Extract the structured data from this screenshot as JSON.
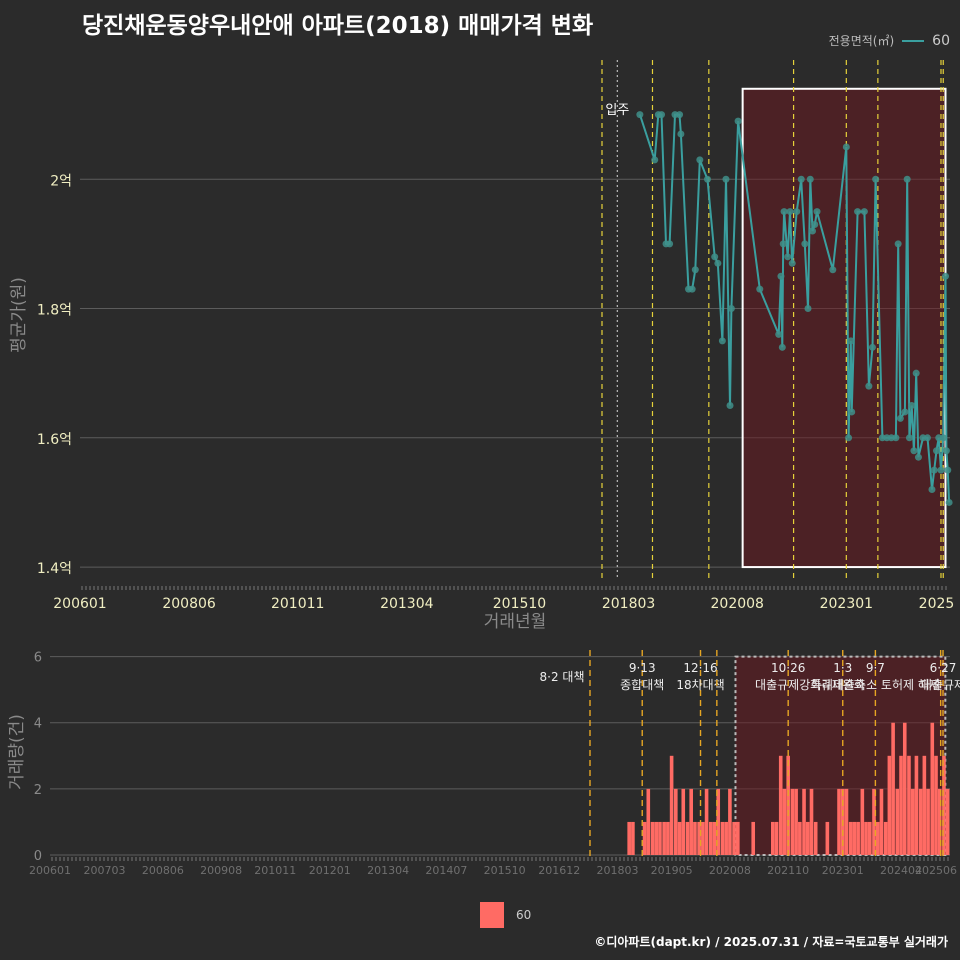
{
  "title": "당진채운동양우내안애 아파트(2018) 매매가격 변화",
  "legend_top": {
    "title": "전용면적(㎡)",
    "item": "60",
    "color": "#3a9f9f"
  },
  "legend_bottom": {
    "item": "60",
    "color": "#ff6b64"
  },
  "footer": "©디아파트(dapt.kr) / 2025.07.31 / 자료=국토교통부 실거래가",
  "chart_data": [
    {
      "type": "line",
      "title": "당진채운동양우내안애 아파트(2018) 매매가격 변화",
      "xlabel": "거래년월",
      "ylabel": "평균가(원)",
      "ylim": [
        1.38,
        2.2
      ],
      "xlim": [
        2006.0,
        2025.3
      ],
      "x_ticks": [
        {
          "v": 2006.0,
          "l": "200601"
        },
        {
          "v": 2008.42,
          "l": "200806"
        },
        {
          "v": 2010.83,
          "l": "201011"
        },
        {
          "v": 2013.25,
          "l": "201304"
        },
        {
          "v": 2015.75,
          "l": "201510"
        },
        {
          "v": 2018.17,
          "l": "201803"
        },
        {
          "v": 2020.58,
          "l": "202008"
        },
        {
          "v": 2023.0,
          "l": "202301"
        },
        {
          "v": 2025.0,
          "l": "2025"
        }
      ],
      "y_ticks": [
        {
          "v": 1.4,
          "l": "1.4억"
        },
        {
          "v": 1.6,
          "l": "1.6억"
        },
        {
          "v": 1.8,
          "l": "1.8억"
        },
        {
          "v": 2.0,
          "l": "2억"
        }
      ],
      "move_in": {
        "x": 2017.92,
        "label": "입주"
      },
      "policy_lines": [
        2017.58,
        2018.7,
        2019.95,
        2021.83,
        2023.0,
        2023.7,
        2025.1,
        2025.15
      ],
      "highlight": {
        "x0": 2020.7,
        "x1": 2025.2,
        "y0": 1.4,
        "y1": 2.14
      },
      "series": [
        {
          "name": "60",
          "points": [
            [
              2018.42,
              2.1
            ],
            [
              2018.75,
              2.03
            ],
            [
              2018.83,
              2.1
            ],
            [
              2018.9,
              2.1
            ],
            [
              2019.0,
              1.9
            ],
            [
              2019.08,
              1.9
            ],
            [
              2019.2,
              2.1
            ],
            [
              2019.3,
              2.1
            ],
            [
              2019.33,
              2.07
            ],
            [
              2019.5,
              1.83
            ],
            [
              2019.58,
              1.83
            ],
            [
              2019.65,
              1.86
            ],
            [
              2019.75,
              2.03
            ],
            [
              2019.92,
              2.0
            ],
            [
              2020.08,
              1.88
            ],
            [
              2020.15,
              1.87
            ],
            [
              2020.25,
              1.75
            ],
            [
              2020.33,
              2.0
            ],
            [
              2020.42,
              1.65
            ],
            [
              2020.45,
              1.8
            ],
            [
              2020.6,
              2.09
            ],
            [
              2021.08,
              1.83
            ],
            [
              2021.5,
              1.76
            ],
            [
              2021.55,
              1.85
            ],
            [
              2021.58,
              1.74
            ],
            [
              2021.6,
              1.9
            ],
            [
              2021.62,
              1.95
            ],
            [
              2021.7,
              1.88
            ],
            [
              2021.75,
              1.95
            ],
            [
              2021.8,
              1.87
            ],
            [
              2021.9,
              1.95
            ],
            [
              2022.0,
              2.0
            ],
            [
              2022.08,
              1.9
            ],
            [
              2022.15,
              1.8
            ],
            [
              2022.2,
              2.0
            ],
            [
              2022.25,
              1.92
            ],
            [
              2022.3,
              1.93
            ],
            [
              2022.35,
              1.95
            ],
            [
              2022.7,
              1.86
            ],
            [
              2023.0,
              2.05
            ],
            [
              2023.05,
              1.6
            ],
            [
              2023.1,
              1.75
            ],
            [
              2023.12,
              1.64
            ],
            [
              2023.25,
              1.95
            ],
            [
              2023.4,
              1.95
            ],
            [
              2023.5,
              1.68
            ],
            [
              2023.58,
              1.74
            ],
            [
              2023.65,
              2.0
            ],
            [
              2023.8,
              1.6
            ],
            [
              2023.9,
              1.6
            ],
            [
              2024.0,
              1.6
            ],
            [
              2024.1,
              1.6
            ],
            [
              2024.15,
              1.9
            ],
            [
              2024.2,
              1.63
            ],
            [
              2024.3,
              1.64
            ],
            [
              2024.35,
              2.0
            ],
            [
              2024.4,
              1.6
            ],
            [
              2024.45,
              1.65
            ],
            [
              2024.5,
              1.58
            ],
            [
              2024.55,
              1.7
            ],
            [
              2024.6,
              1.57
            ],
            [
              2024.7,
              1.6
            ],
            [
              2024.8,
              1.6
            ],
            [
              2024.9,
              1.52
            ],
            [
              2024.95,
              1.55
            ],
            [
              2025.0,
              1.58
            ],
            [
              2025.05,
              1.6
            ],
            [
              2025.1,
              1.55
            ],
            [
              2025.15,
              1.6
            ],
            [
              2025.2,
              1.85
            ],
            [
              2025.22,
              1.58
            ],
            [
              2025.25,
              1.55
            ],
            [
              2025.28,
              1.5
            ]
          ]
        }
      ]
    },
    {
      "type": "bar",
      "xlabel": "",
      "ylabel": "거래량(건)",
      "ylim": [
        0,
        6.2
      ],
      "xlim": [
        2006.0,
        2025.3
      ],
      "x_ticks": [
        {
          "v": 2006.0,
          "l": "200601"
        },
        {
          "v": 2007.17,
          "l": "200703"
        },
        {
          "v": 2008.42,
          "l": "200806"
        },
        {
          "v": 2009.67,
          "l": "200908"
        },
        {
          "v": 2010.83,
          "l": "201011"
        },
        {
          "v": 2012.0,
          "l": "201201"
        },
        {
          "v": 2013.25,
          "l": "201304"
        },
        {
          "v": 2014.5,
          "l": "201407"
        },
        {
          "v": 2015.75,
          "l": "201510"
        },
        {
          "v": 2016.92,
          "l": "201612"
        },
        {
          "v": 2018.17,
          "l": "201803"
        },
        {
          "v": 2019.33,
          "l": "201905"
        },
        {
          "v": 2020.58,
          "l": "202008"
        },
        {
          "v": 2021.83,
          "l": "202110"
        },
        {
          "v": 2023.0,
          "l": "202301"
        },
        {
          "v": 2024.25,
          "l": "202404"
        },
        {
          "v": 2025.0,
          "l": "202506"
        }
      ],
      "y_ticks": [
        {
          "v": 0,
          "l": "0"
        },
        {
          "v": 2,
          "l": "2"
        },
        {
          "v": 4,
          "l": "4"
        },
        {
          "v": 6,
          "l": "6"
        }
      ],
      "highlight": {
        "x0": 2020.7,
        "x1": 2025.2,
        "y0": 0,
        "y1": 6
      },
      "policies": [
        {
          "x": 2017.58,
          "lines": [
            "8·2 대책"
          ]
        },
        {
          "x": 2018.7,
          "lines": [
            "9·13",
            "종합대책"
          ]
        },
        {
          "x": 2019.95,
          "lines": [
            "12·16",
            "18차대책"
          ]
        },
        {
          "x": 2020.3,
          "lines": []
        },
        {
          "x": 2021.83,
          "lines": [
            "10·26",
            "대출규제강화"
          ]
        },
        {
          "x": 2023.0,
          "lines": [
            "1·3",
            "규제완화"
          ]
        },
        {
          "x": 2023.7,
          "lines": [
            "9·7",
            "특례대출축소 토허제 해제"
          ]
        },
        {
          "x": 2025.1,
          "lines": []
        },
        {
          "x": 2025.15,
          "lines": [
            "6·27",
            "대출규제"
          ]
        }
      ],
      "series": [
        {
          "name": "60",
          "points": [
            [
              2018.42,
              1
            ],
            [
              2018.5,
              1
            ],
            [
              2018.75,
              1
            ],
            [
              2018.83,
              2
            ],
            [
              2018.92,
              1
            ],
            [
              2019.0,
              1
            ],
            [
              2019.08,
              1
            ],
            [
              2019.17,
              1
            ],
            [
              2019.25,
              1
            ],
            [
              2019.33,
              3
            ],
            [
              2019.42,
              2
            ],
            [
              2019.5,
              1
            ],
            [
              2019.58,
              2
            ],
            [
              2019.67,
              1
            ],
            [
              2019.75,
              2
            ],
            [
              2019.83,
              1
            ],
            [
              2019.92,
              1
            ],
            [
              2020.0,
              1
            ],
            [
              2020.08,
              2
            ],
            [
              2020.17,
              1
            ],
            [
              2020.25,
              1
            ],
            [
              2020.33,
              2
            ],
            [
              2020.42,
              1
            ],
            [
              2020.5,
              1
            ],
            [
              2020.58,
              2
            ],
            [
              2020.67,
              1
            ],
            [
              2020.75,
              1
            ],
            [
              2021.08,
              1
            ],
            [
              2021.5,
              1
            ],
            [
              2021.58,
              1
            ],
            [
              2021.67,
              3
            ],
            [
              2021.75,
              2
            ],
            [
              2021.83,
              3
            ],
            [
              2021.92,
              2
            ],
            [
              2022.0,
              2
            ],
            [
              2022.08,
              1
            ],
            [
              2022.17,
              2
            ],
            [
              2022.25,
              1
            ],
            [
              2022.33,
              2
            ],
            [
              2022.42,
              1
            ],
            [
              2022.67,
              1
            ],
            [
              2022.92,
              2
            ],
            [
              2023.0,
              2
            ],
            [
              2023.08,
              2
            ],
            [
              2023.17,
              1
            ],
            [
              2023.25,
              1
            ],
            [
              2023.33,
              1
            ],
            [
              2023.42,
              2
            ],
            [
              2023.5,
              1
            ],
            [
              2023.58,
              1
            ],
            [
              2023.67,
              2
            ],
            [
              2023.75,
              1
            ],
            [
              2023.83,
              2
            ],
            [
              2023.92,
              1
            ],
            [
              2024.0,
              3
            ],
            [
              2024.08,
              4
            ],
            [
              2024.17,
              2
            ],
            [
              2024.25,
              3
            ],
            [
              2024.33,
              4
            ],
            [
              2024.42,
              3
            ],
            [
              2024.5,
              2
            ],
            [
              2024.58,
              3
            ],
            [
              2024.67,
              2
            ],
            [
              2024.75,
              3
            ],
            [
              2024.83,
              2
            ],
            [
              2024.92,
              4
            ],
            [
              2025.0,
              3
            ],
            [
              2025.08,
              2
            ],
            [
              2025.17,
              3
            ],
            [
              2025.25,
              2
            ]
          ]
        }
      ]
    }
  ]
}
